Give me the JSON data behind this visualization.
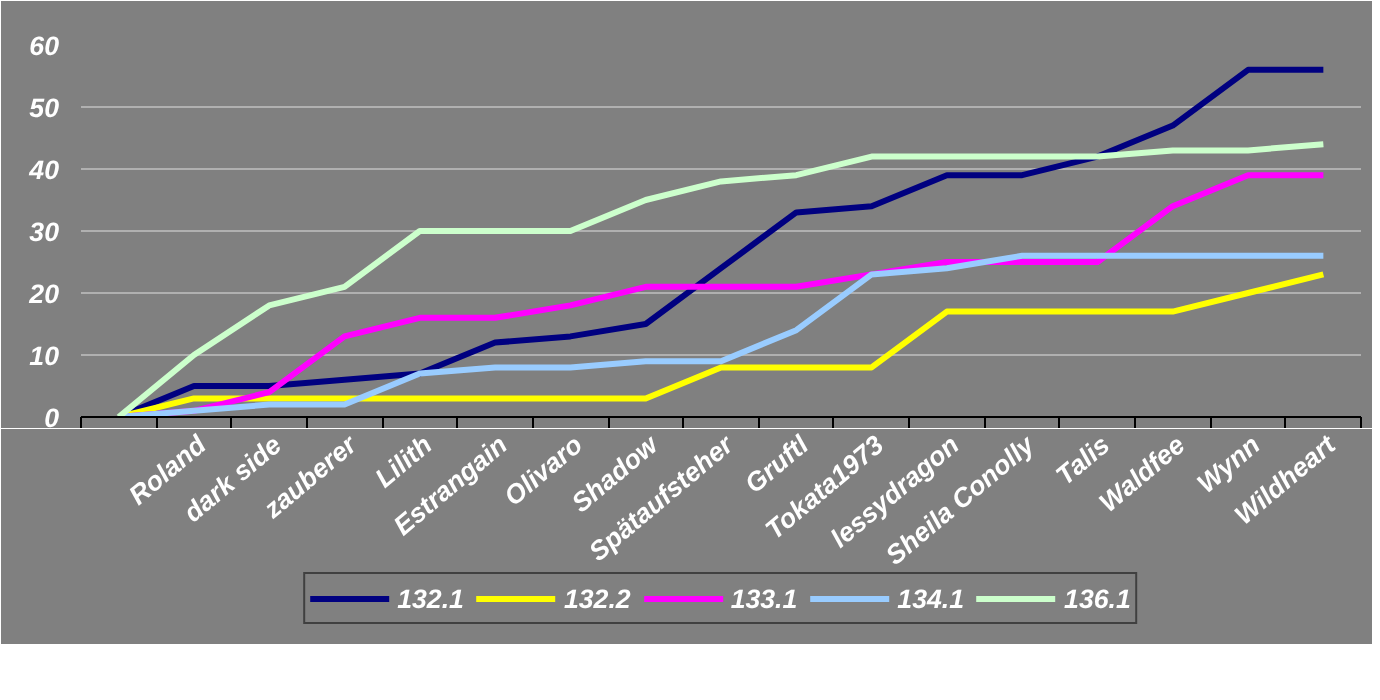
{
  "chart_data": {
    "type": "line",
    "categories": [
      null,
      "Roland",
      "dark side",
      "zauberer",
      "Lilith",
      "Estrangain",
      "Olivaro",
      "Shadow",
      "Spätaufsteher",
      "Gruftl",
      "Tokata1973",
      "lessydragon",
      "Sheila Conolly",
      "Talis",
      "Waldfee",
      "Wynn",
      "Wildheart"
    ],
    "series": [
      {
        "name": "132.1",
        "color": "#000080",
        "values": [
          0,
          5,
          5,
          6,
          7,
          12,
          13,
          15,
          24,
          33,
          34,
          39,
          39,
          42,
          47,
          56,
          56
        ]
      },
      {
        "name": "132.2",
        "color": "#ffff00",
        "values": [
          0,
          3,
          3,
          3,
          3,
          3,
          3,
          3,
          8,
          8,
          8,
          17,
          17,
          17,
          17,
          20,
          23
        ]
      },
      {
        "name": "133.1",
        "color": "#ff00ff",
        "values": [
          0,
          1,
          4,
          13,
          16,
          16,
          18,
          21,
          21,
          21,
          23,
          25,
          25,
          25,
          34,
          39,
          39
        ]
      },
      {
        "name": "134.1",
        "color": "#99ccff",
        "values": [
          0,
          1,
          2,
          2,
          7,
          8,
          8,
          9,
          9,
          14,
          23,
          24,
          26,
          26,
          26,
          26,
          26
        ]
      },
      {
        "name": "136.1",
        "color": "#ccffcc",
        "values": [
          0,
          10,
          18,
          21,
          30,
          30,
          30,
          35,
          38,
          39,
          42,
          42,
          42,
          42,
          43,
          43,
          44
        ]
      }
    ],
    "ylim": [
      0,
      60
    ],
    "yticks": [
      0,
      10,
      20,
      30,
      40,
      50,
      60
    ],
    "grid": "y",
    "legend": "bottom",
    "marker": "none",
    "line_style": "solid"
  }
}
